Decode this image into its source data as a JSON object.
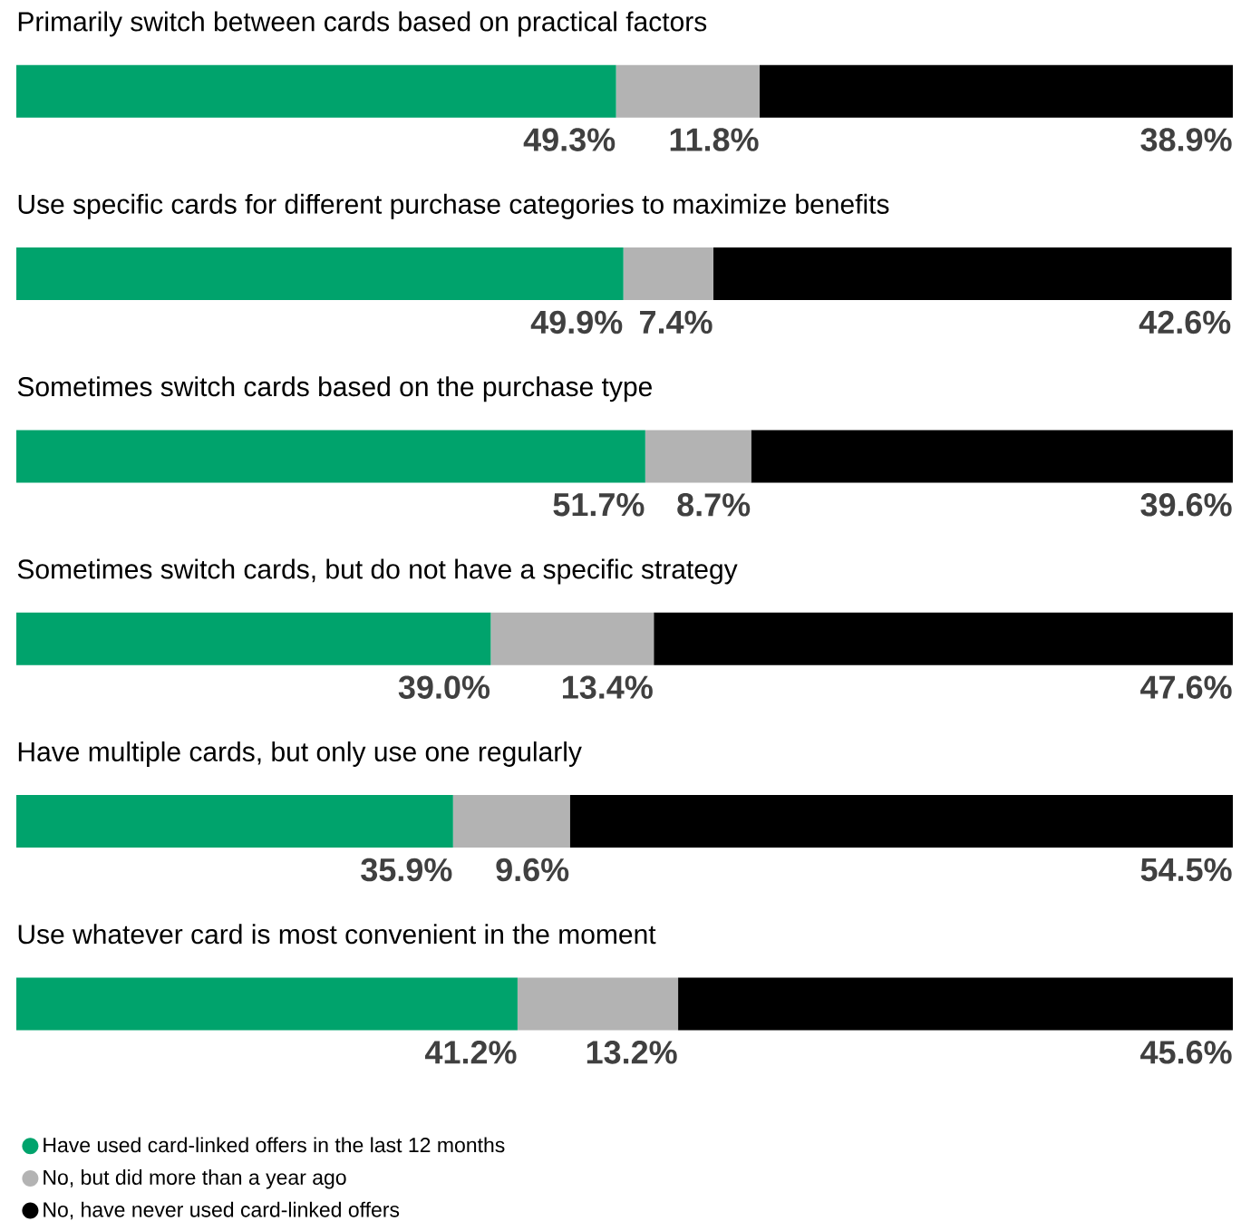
{
  "chart_data": {
    "type": "bar",
    "orientation": "horizontal",
    "stacked": true,
    "xlim": [
      0,
      100
    ],
    "tick_labels": false,
    "legend": "bottom left",
    "marker": "circle",
    "categories": [
      "Primarily switch between cards based on practical factors",
      "Use specific cards for different purchase categories to maximize benefits",
      "Sometimes switch cards based on the purchase type",
      "Sometimes switch cards, but do not have a specific strategy",
      "Have multiple cards, but only use one regularly",
      "Use whatever card is most convenient in the moment"
    ],
    "series": [
      {
        "name": "Have used card-linked offers in the last 12 months",
        "color": "#00a36c",
        "values": [
          49.3,
          49.9,
          51.7,
          39.0,
          35.9,
          41.2
        ],
        "value_labels": [
          "49.3%",
          "49.9%",
          "51.7%",
          "39.0%",
          "35.9%",
          "41.2%"
        ]
      },
      {
        "name": "No, but did more than a year ago",
        "color": "#b3b3b3",
        "values": [
          11.8,
          7.4,
          8.7,
          13.4,
          9.6,
          13.2
        ],
        "value_labels": [
          "11.8%",
          "7.4%",
          "8.7%",
          "13.4%",
          "9.6%",
          "13.2%"
        ]
      },
      {
        "name": "No, have never used card-linked offers",
        "color": "#000000",
        "values": [
          38.9,
          42.6,
          39.6,
          47.6,
          54.5,
          45.6
        ],
        "value_labels": [
          "38.9%",
          "42.6%",
          "39.6%",
          "47.6%",
          "54.5%",
          "45.6%"
        ]
      }
    ]
  }
}
